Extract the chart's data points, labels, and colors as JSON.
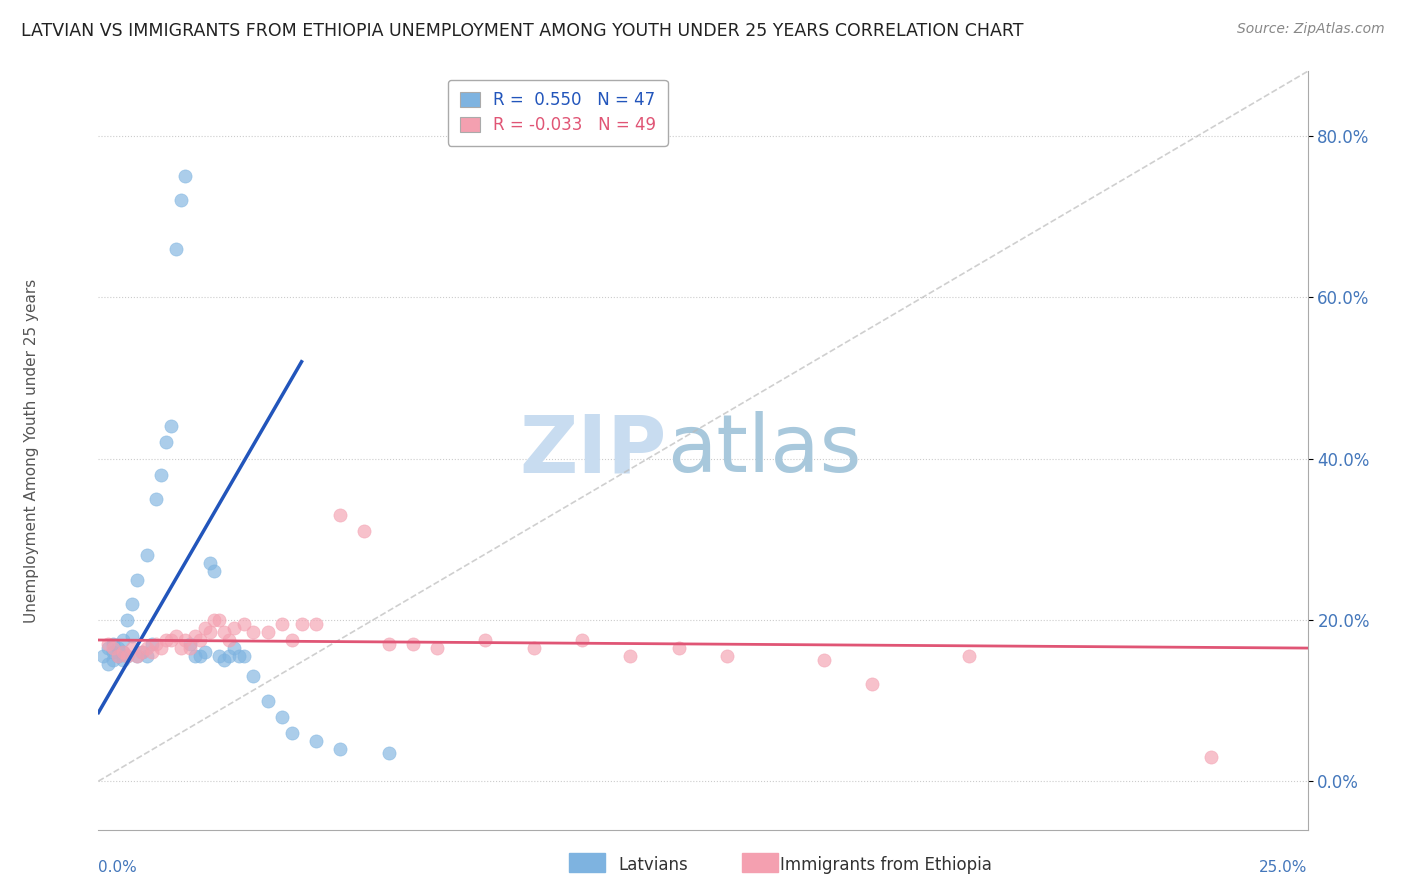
{
  "title": "LATVIAN VS IMMIGRANTS FROM ETHIOPIA UNEMPLOYMENT AMONG YOUTH UNDER 25 YEARS CORRELATION CHART",
  "source": "Source: ZipAtlas.com",
  "ylabel": "Unemployment Among Youth under 25 years",
  "xlim": [
    0.0,
    0.25
  ],
  "ylim": [
    -0.06,
    0.88
  ],
  "yticks": [
    0.0,
    0.2,
    0.4,
    0.6,
    0.8
  ],
  "ytick_labels": [
    "0.0%",
    "20.0%",
    "40.0%",
    "60.0%",
    "80.0%"
  ],
  "latvian_R": 0.55,
  "latvian_N": 47,
  "ethiopia_R": -0.033,
  "ethiopia_N": 49,
  "latvian_color": "#7EB3E0",
  "ethiopia_color": "#F4A0B0",
  "latvian_line_color": "#2255BB",
  "ethiopia_line_color": "#E05575",
  "ref_line_color": "#BBBBBB",
  "latvians_x": [
    0.001,
    0.002,
    0.002,
    0.003,
    0.003,
    0.003,
    0.004,
    0.004,
    0.005,
    0.005,
    0.005,
    0.006,
    0.006,
    0.007,
    0.007,
    0.008,
    0.008,
    0.009,
    0.01,
    0.01,
    0.011,
    0.012,
    0.013,
    0.014,
    0.015,
    0.016,
    0.017,
    0.018,
    0.019,
    0.02,
    0.021,
    0.022,
    0.023,
    0.024,
    0.025,
    0.026,
    0.027,
    0.028,
    0.029,
    0.03,
    0.032,
    0.035,
    0.038,
    0.04,
    0.045,
    0.05,
    0.06
  ],
  "latvians_y": [
    0.155,
    0.145,
    0.165,
    0.15,
    0.16,
    0.17,
    0.155,
    0.165,
    0.15,
    0.16,
    0.175,
    0.155,
    0.2,
    0.18,
    0.22,
    0.155,
    0.25,
    0.16,
    0.155,
    0.28,
    0.17,
    0.35,
    0.38,
    0.42,
    0.44,
    0.66,
    0.72,
    0.75,
    0.17,
    0.155,
    0.155,
    0.16,
    0.27,
    0.26,
    0.155,
    0.15,
    0.155,
    0.165,
    0.155,
    0.155,
    0.13,
    0.1,
    0.08,
    0.06,
    0.05,
    0.04,
    0.035
  ],
  "ethiopia_x": [
    0.002,
    0.003,
    0.004,
    0.005,
    0.006,
    0.007,
    0.008,
    0.009,
    0.01,
    0.011,
    0.012,
    0.013,
    0.014,
    0.015,
    0.016,
    0.017,
    0.018,
    0.019,
    0.02,
    0.021,
    0.022,
    0.023,
    0.024,
    0.025,
    0.026,
    0.027,
    0.028,
    0.03,
    0.032,
    0.035,
    0.038,
    0.04,
    0.042,
    0.045,
    0.05,
    0.055,
    0.06,
    0.065,
    0.07,
    0.08,
    0.09,
    0.1,
    0.11,
    0.12,
    0.13,
    0.15,
    0.16,
    0.18,
    0.23
  ],
  "ethiopia_y": [
    0.17,
    0.165,
    0.155,
    0.16,
    0.155,
    0.165,
    0.155,
    0.16,
    0.165,
    0.16,
    0.17,
    0.165,
    0.175,
    0.175,
    0.18,
    0.165,
    0.175,
    0.165,
    0.18,
    0.175,
    0.19,
    0.185,
    0.2,
    0.2,
    0.185,
    0.175,
    0.19,
    0.195,
    0.185,
    0.185,
    0.195,
    0.175,
    0.195,
    0.195,
    0.33,
    0.31,
    0.17,
    0.17,
    0.165,
    0.175,
    0.165,
    0.175,
    0.155,
    0.165,
    0.155,
    0.15,
    0.12,
    0.155,
    0.03
  ],
  "lat_line_x": [
    0.0,
    0.042
  ],
  "lat_line_y": [
    0.085,
    0.52
  ],
  "eth_line_x": [
    0.0,
    0.25
  ],
  "eth_line_y": [
    0.175,
    0.165
  ]
}
